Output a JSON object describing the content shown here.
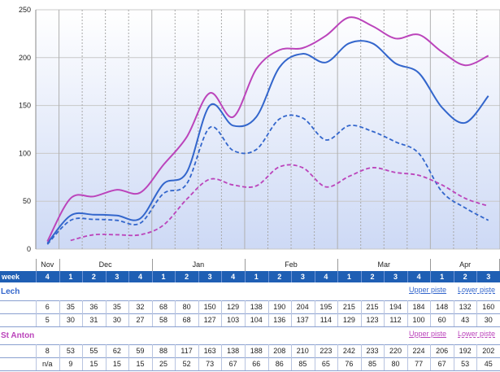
{
  "chart_data": {
    "type": "line",
    "ylim": [
      0,
      250
    ],
    "yticks": [
      0,
      50,
      100,
      150,
      200,
      250
    ],
    "grid": true,
    "week_label": "week",
    "months": [
      {
        "label": "Nov",
        "weeks": 1
      },
      {
        "label": "Dec",
        "weeks": 4
      },
      {
        "label": "Jan",
        "weeks": 4
      },
      {
        "label": "Feb",
        "weeks": 4
      },
      {
        "label": "Mar",
        "weeks": 4
      },
      {
        "label": "Apr",
        "weeks": 3
      }
    ],
    "weeks": [
      "4",
      "1",
      "2",
      "3",
      "4",
      "1",
      "2",
      "3",
      "4",
      "1",
      "2",
      "3",
      "4",
      "1",
      "2",
      "3",
      "4",
      "1",
      "2",
      "3"
    ],
    "resorts": [
      {
        "name": "Lech",
        "color": "#3366cc",
        "series": [
          {
            "name": "Upper piste",
            "style": "solid",
            "display": [
              "6",
              "35",
              "36",
              "35",
              "32",
              "68",
              "80",
              "150",
              "129",
              "138",
              "190",
              "204",
              "195",
              "215",
              "215",
              "194",
              "184",
              "148",
              "132",
              "160"
            ],
            "values": [
              6,
              35,
              36,
              35,
              32,
              68,
              80,
              150,
              129,
              138,
              190,
              204,
              195,
              215,
              215,
              194,
              184,
              148,
              132,
              160
            ]
          },
          {
            "name": "Lower piste",
            "style": "dashed",
            "display": [
              "5",
              "30",
              "31",
              "30",
              "27",
              "58",
              "68",
              "127",
              "103",
              "104",
              "136",
              "137",
              "114",
              "129",
              "123",
              "112",
              "100",
              "60",
              "43",
              "30"
            ],
            "values": [
              5,
              30,
              31,
              30,
              27,
              58,
              68,
              127,
              103,
              104,
              136,
              137,
              114,
              129,
              123,
              112,
              100,
              60,
              43,
              30
            ]
          }
        ]
      },
      {
        "name": "St Anton",
        "color": "#bb44bb",
        "series": [
          {
            "name": "Upper piste",
            "style": "solid",
            "display": [
              "8",
              "53",
              "55",
              "62",
              "59",
              "88",
              "117",
              "163",
              "138",
              "188",
              "208",
              "210",
              "223",
              "242",
              "233",
              "220",
              "224",
              "206",
              "192",
              "202"
            ],
            "values": [
              8,
              53,
              55,
              62,
              59,
              88,
              117,
              163,
              138,
              188,
              208,
              210,
              223,
              242,
              233,
              220,
              224,
              206,
              192,
              202
            ]
          },
          {
            "name": "Lower piste",
            "style": "dashed",
            "display": [
              "n/a",
              "9",
              "15",
              "15",
              "15",
              "25",
              "52",
              "73",
              "67",
              "66",
              "86",
              "85",
              "65",
              "76",
              "85",
              "80",
              "77",
              "67",
              "53",
              "45"
            ],
            "values": [
              null,
              9,
              15,
              15,
              15,
              25,
              52,
              73,
              67,
              66,
              86,
              85,
              65,
              76,
              85,
              80,
              77,
              67,
              53,
              45
            ]
          }
        ]
      }
    ]
  }
}
